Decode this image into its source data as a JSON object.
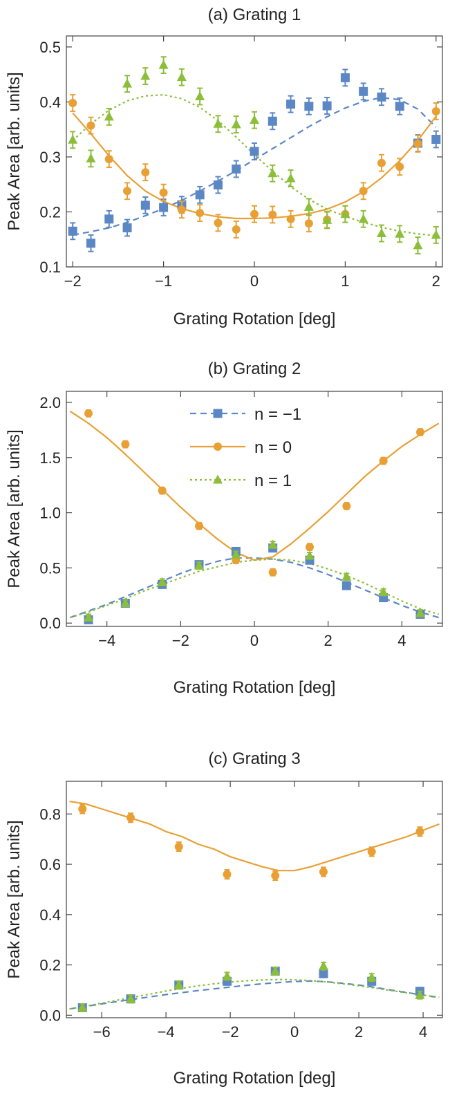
{
  "chart_data": [
    {
      "type": "scatter",
      "title": "(a) Grating 1",
      "xlabel": "Grating Rotation [deg]",
      "ylabel": "Peak Area [arb. units]",
      "xlim": [
        -2.07,
        2.07
      ],
      "ylim": [
        0.1,
        0.52
      ],
      "xticks": [
        -2,
        -1,
        0,
        1,
        2
      ],
      "xtick_labels": [
        "−2",
        "−1",
        "0",
        "1",
        "2"
      ],
      "yticks": [
        0.1,
        0.2,
        0.3,
        0.4,
        0.5
      ],
      "ytick_labels": [
        "0.1",
        "0.2",
        "0.3",
        "0.4",
        "0.5"
      ],
      "legend": null,
      "series": [
        {
          "name": "n = −1",
          "color": "#5b87c5",
          "marker": "square",
          "line": "dashed",
          "x": [
            -2.0,
            -1.8,
            -1.6,
            -1.4,
            -1.2,
            -1.0,
            -0.8,
            -0.6,
            -0.4,
            -0.2,
            0.0,
            0.2,
            0.4,
            0.6,
            0.8,
            1.0,
            1.2,
            1.4,
            1.6,
            1.8,
            2.0
          ],
          "y": [
            0.165,
            0.143,
            0.187,
            0.171,
            0.212,
            0.208,
            0.213,
            0.231,
            0.249,
            0.278,
            0.31,
            0.365,
            0.396,
            0.392,
            0.393,
            0.444,
            0.419,
            0.409,
            0.392,
            0.325,
            0.332
          ],
          "err": 0.015,
          "fit": {
            "x": [
              -2.0,
              -1.8,
              -1.6,
              -1.4,
              -1.2,
              -1.0,
              -0.8,
              -0.6,
              -0.4,
              -0.2,
              0.0,
              0.2,
              0.4,
              0.6,
              0.8,
              1.0,
              1.2,
              1.4,
              1.6,
              1.8,
              2.0
            ],
            "y": [
              0.158,
              0.164,
              0.171,
              0.181,
              0.193,
              0.206,
              0.221,
              0.238,
              0.256,
              0.275,
              0.295,
              0.315,
              0.335,
              0.355,
              0.373,
              0.389,
              0.401,
              0.408,
              0.404,
              0.387,
              0.354
            ]
          }
        },
        {
          "name": "n = 0",
          "color": "#e8a035",
          "marker": "circle",
          "line": "solid",
          "x": [
            -2.0,
            -1.8,
            -1.6,
            -1.4,
            -1.2,
            -1.0,
            -0.8,
            -0.6,
            -0.4,
            -0.2,
            0.0,
            0.2,
            0.4,
            0.6,
            0.8,
            1.0,
            1.2,
            1.4,
            1.6,
            1.8,
            2.0
          ],
          "y": [
            0.398,
            0.357,
            0.296,
            0.238,
            0.272,
            0.235,
            0.204,
            0.198,
            0.18,
            0.168,
            0.196,
            0.195,
            0.187,
            0.179,
            0.186,
            0.196,
            0.238,
            0.289,
            0.282,
            0.324,
            0.383
          ],
          "err": 0.015,
          "fit": {
            "x": [
              -2.0,
              -1.8,
              -1.6,
              -1.4,
              -1.2,
              -1.0,
              -0.8,
              -0.6,
              -0.4,
              -0.2,
              0.0,
              0.2,
              0.4,
              0.6,
              0.8,
              1.0,
              1.2,
              1.4,
              1.6,
              1.8,
              2.0
            ],
            "y": [
              0.38,
              0.342,
              0.302,
              0.266,
              0.238,
              0.219,
              0.206,
              0.197,
              0.191,
              0.188,
              0.188,
              0.189,
              0.192,
              0.197,
              0.205,
              0.218,
              0.237,
              0.262,
              0.293,
              0.33,
              0.374
            ]
          }
        },
        {
          "name": "n = 1",
          "color": "#8cbe3a",
          "marker": "triangle",
          "line": "dotted",
          "x": [
            -2.0,
            -1.8,
            -1.6,
            -1.4,
            -1.2,
            -1.0,
            -0.8,
            -0.6,
            -0.4,
            -0.2,
            0.0,
            0.2,
            0.4,
            0.6,
            0.8,
            1.0,
            1.2,
            1.4,
            1.6,
            1.8,
            2.0
          ],
          "y": [
            0.331,
            0.297,
            0.373,
            0.433,
            0.447,
            0.467,
            0.445,
            0.41,
            0.36,
            0.359,
            0.367,
            0.27,
            0.261,
            0.209,
            0.185,
            0.196,
            0.187,
            0.161,
            0.16,
            0.139,
            0.158
          ],
          "err": 0.015,
          "fit": {
            "x": [
              -2.0,
              -1.8,
              -1.6,
              -1.4,
              -1.2,
              -1.0,
              -0.8,
              -0.6,
              -0.4,
              -0.2,
              0.0,
              0.2,
              0.4,
              0.6,
              0.8,
              1.0,
              1.2,
              1.4,
              1.6,
              1.8,
              2.0
            ],
            "y": [
              0.33,
              0.36,
              0.385,
              0.402,
              0.411,
              0.413,
              0.406,
              0.39,
              0.366,
              0.336,
              0.304,
              0.274,
              0.246,
              0.223,
              0.205,
              0.192,
              0.181,
              0.172,
              0.165,
              0.16,
              0.157
            ]
          }
        }
      ]
    },
    {
      "type": "scatter",
      "title": "(b) Grating 2",
      "xlabel": "Grating Rotation [deg]",
      "ylabel": "Peak Area [arb. units]",
      "xlim": [
        -5.1,
        5.1
      ],
      "ylim": [
        -0.03,
        2.1
      ],
      "xticks": [
        -4,
        -2,
        0,
        2,
        4
      ],
      "xtick_labels": [
        "−4",
        "−2",
        "0",
        "2",
        "4"
      ],
      "yticks": [
        0.0,
        0.5,
        1.0,
        1.5,
        2.0
      ],
      "ytick_labels": [
        "0.0",
        "0.5",
        "1.0",
        "1.5",
        "2.0"
      ],
      "legend": {
        "placement": "top-center",
        "entries": [
          {
            "label": "n  =  −1",
            "color": "#5b87c5",
            "marker": "square",
            "line": "dashed"
          },
          {
            "label": "n  =  0",
            "color": "#e8a035",
            "marker": "circle",
            "line": "solid"
          },
          {
            "label": "n  =  1",
            "color": "#8cbe3a",
            "marker": "triangle",
            "line": "dotted"
          }
        ]
      },
      "series": [
        {
          "name": "n = −1",
          "color": "#5b87c5",
          "marker": "square",
          "line": "dashed",
          "x": [
            -4.5,
            -3.5,
            -2.5,
            -1.5,
            -0.5,
            0.5,
            1.5,
            2.5,
            3.5,
            4.5
          ],
          "y": [
            0.03,
            0.18,
            0.35,
            0.53,
            0.65,
            0.68,
            0.57,
            0.34,
            0.23,
            0.08
          ],
          "err": 0.03,
          "fit": {
            "x": [
              -5.0,
              -4.5,
              -4.0,
              -3.5,
              -3.0,
              -2.5,
              -2.0,
              -1.5,
              -1.0,
              -0.5,
              0.0,
              0.5,
              1.0,
              1.5,
              2.0,
              2.5,
              3.0,
              3.5,
              4.0,
              4.5,
              5.0
            ],
            "y": [
              0.05,
              0.11,
              0.17,
              0.24,
              0.31,
              0.38,
              0.45,
              0.51,
              0.56,
              0.59,
              0.59,
              0.58,
              0.55,
              0.5,
              0.44,
              0.37,
              0.3,
              0.23,
              0.16,
              0.1,
              0.05
            ]
          }
        },
        {
          "name": "n = 0",
          "color": "#e8a035",
          "marker": "circle",
          "line": "solid",
          "x": [
            -4.5,
            -3.5,
            -2.5,
            -1.5,
            -0.5,
            0.5,
            1.5,
            2.5,
            3.5,
            4.5
          ],
          "y": [
            1.9,
            1.62,
            1.2,
            0.88,
            0.57,
            0.46,
            0.69,
            1.06,
            1.47,
            1.73
          ],
          "err": 0.03,
          "fit": {
            "x": [
              -5.0,
              -4.5,
              -4.0,
              -3.5,
              -3.0,
              -2.5,
              -2.0,
              -1.5,
              -1.0,
              -0.5,
              0.0,
              0.5,
              1.0,
              1.5,
              2.0,
              2.5,
              3.0,
              3.5,
              4.0,
              4.5,
              5.0
            ],
            "y": [
              1.92,
              1.81,
              1.68,
              1.53,
              1.37,
              1.21,
              1.05,
              0.9,
              0.76,
              0.64,
              0.57,
              0.6,
              0.72,
              0.86,
              1.01,
              1.17,
              1.33,
              1.47,
              1.6,
              1.71,
              1.81
            ]
          }
        },
        {
          "name": "n = 1",
          "color": "#8cbe3a",
          "marker": "triangle",
          "line": "dotted",
          "x": [
            -4.5,
            -3.5,
            -2.5,
            -1.5,
            -0.5,
            0.5,
            1.5,
            2.5,
            3.5,
            4.5
          ],
          "y": [
            0.05,
            0.18,
            0.37,
            0.52,
            0.62,
            0.71,
            0.61,
            0.42,
            0.28,
            0.09
          ],
          "err": 0.03,
          "fit": {
            "x": [
              -5.0,
              -4.5,
              -4.0,
              -3.5,
              -3.0,
              -2.5,
              -2.0,
              -1.5,
              -1.0,
              -0.5,
              0.0,
              0.5,
              1.0,
              1.5,
              2.0,
              2.5,
              3.0,
              3.5,
              4.0,
              4.5,
              5.0
            ],
            "y": [
              0.05,
              0.1,
              0.16,
              0.22,
              0.29,
              0.35,
              0.41,
              0.47,
              0.51,
              0.55,
              0.57,
              0.58,
              0.57,
              0.54,
              0.49,
              0.43,
              0.36,
              0.28,
              0.2,
              0.13,
              0.08
            ]
          }
        }
      ]
    },
    {
      "type": "scatter",
      "title": "(c) Grating 3",
      "xlabel": "Grating Rotation [deg]",
      "ylabel": "Peak Area [arb. units]",
      "xlim": [
        -7.1,
        4.6
      ],
      "ylim": [
        -0.01,
        0.93
      ],
      "xticks": [
        -6,
        -4,
        -2,
        0,
        2,
        4
      ],
      "xtick_labels": [
        "−6",
        "−4",
        "−2",
        "0",
        "2",
        "4"
      ],
      "yticks": [
        0.0,
        0.2,
        0.4,
        0.6,
        0.8
      ],
      "ytick_labels": [
        "0.0",
        "0.2",
        "0.4",
        "0.6",
        "0.8"
      ],
      "legend": null,
      "series": [
        {
          "name": "n = −1",
          "color": "#5b87c5",
          "marker": "square",
          "line": "dashed",
          "x": [
            -6.6,
            -5.1,
            -3.6,
            -2.1,
            -0.6,
            0.9,
            2.4,
            3.9
          ],
          "y": [
            0.03,
            0.065,
            0.12,
            0.135,
            0.175,
            0.165,
            0.135,
            0.095
          ],
          "err": 0.015,
          "fit": {
            "x": [
              -7.0,
              -6.5,
              -6.0,
              -5.5,
              -5.0,
              -4.5,
              -4.0,
              -3.5,
              -3.0,
              -2.5,
              -2.0,
              -1.5,
              -1.0,
              -0.5,
              0.0,
              0.5,
              1.0,
              1.5,
              2.0,
              2.5,
              3.0,
              3.5,
              4.0,
              4.5
            ],
            "y": [
              0.025,
              0.035,
              0.045,
              0.055,
              0.064,
              0.073,
              0.082,
              0.09,
              0.098,
              0.105,
              0.112,
              0.119,
              0.125,
              0.13,
              0.134,
              0.136,
              0.133,
              0.127,
              0.12,
              0.111,
              0.1,
              0.09,
              0.08,
              0.07
            ]
          }
        },
        {
          "name": "n = 0",
          "color": "#e8a035",
          "marker": "circle",
          "line": "solid",
          "x": [
            -6.6,
            -5.1,
            -3.6,
            -2.1,
            -0.6,
            0.9,
            2.4,
            3.9
          ],
          "y": [
            0.82,
            0.785,
            0.67,
            0.56,
            0.555,
            0.57,
            0.65,
            0.73
          ],
          "err": 0.018,
          "fit": {
            "x": [
              -7.0,
              -6.5,
              -6.0,
              -5.5,
              -5.0,
              -4.5,
              -4.0,
              -3.5,
              -3.0,
              -2.5,
              -2.0,
              -1.5,
              -1.0,
              -0.5,
              0.0,
              0.5,
              1.0,
              1.5,
              2.0,
              2.5,
              3.0,
              3.5,
              4.0,
              4.5
            ],
            "y": [
              0.85,
              0.84,
              0.82,
              0.8,
              0.78,
              0.76,
              0.73,
              0.71,
              0.68,
              0.66,
              0.63,
              0.61,
              0.59,
              0.575,
              0.575,
              0.59,
              0.61,
              0.63,
              0.65,
              0.67,
              0.69,
              0.71,
              0.735,
              0.76
            ]
          }
        },
        {
          "name": "n = 1",
          "color": "#8cbe3a",
          "marker": "triangle",
          "line": "dotted",
          "x": [
            -6.6,
            -5.1,
            -3.6,
            -2.1,
            -0.6,
            0.9,
            2.4,
            3.9
          ],
          "y": [
            0.03,
            0.065,
            0.12,
            0.155,
            0.175,
            0.195,
            0.15,
            0.08
          ],
          "err": 0.015,
          "fit": {
            "x": [
              -7.0,
              -6.5,
              -6.0,
              -5.5,
              -5.0,
              -4.5,
              -4.0,
              -3.5,
              -3.0,
              -2.5,
              -2.0,
              -1.5,
              -1.0,
              -0.5,
              0.0,
              0.5,
              1.0,
              1.5,
              2.0,
              2.5,
              3.0,
              3.5,
              4.0,
              4.5
            ],
            "y": [
              0.025,
              0.036,
              0.048,
              0.06,
              0.072,
              0.084,
              0.096,
              0.107,
              0.117,
              0.125,
              0.132,
              0.137,
              0.14,
              0.142,
              0.141,
              0.138,
              0.132,
              0.125,
              0.117,
              0.108,
              0.098,
              0.089,
              0.08,
              0.072
            ]
          }
        }
      ]
    }
  ]
}
